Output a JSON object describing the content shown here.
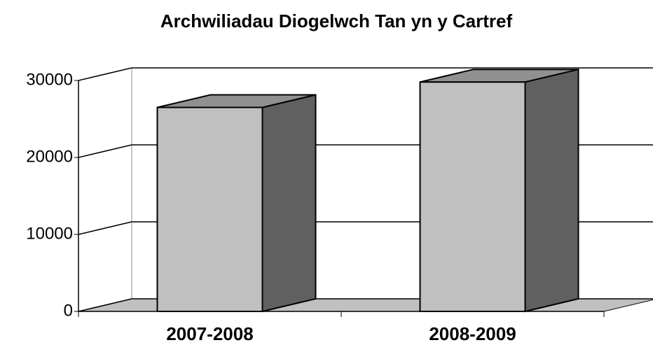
{
  "chart_data": {
    "type": "bar3d",
    "title": "Archwiliadau Diogelwch Tan yn y Cartref",
    "categories": [
      "2007-2008",
      "2008-2009"
    ],
    "values": [
      26500,
      29800
    ],
    "color": "#c0c0c0",
    "side_color": "#606060",
    "top_color": "#909090",
    "ylim": [
      0,
      30000
    ],
    "yticks": [
      0,
      10000,
      20000,
      30000
    ],
    "grid": true
  }
}
